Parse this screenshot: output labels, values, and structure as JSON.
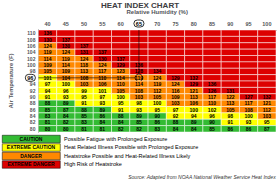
{
  "chart_data": {
    "type": "heatmap",
    "title": "HEAT INDEX CHART",
    "xlabel": "Relative Humidity (%)",
    "ylabel": "Air Temperature (F)",
    "categories": [
      40,
      45,
      50,
      55,
      60,
      65,
      70,
      75,
      80,
      85,
      90,
      95,
      100
    ],
    "y_categories": [
      110,
      108,
      106,
      104,
      102,
      100,
      98,
      96,
      94,
      92,
      90,
      88,
      86,
      84,
      82,
      80
    ],
    "values": [
      [
        136,
        null,
        null,
        null,
        null,
        null,
        null,
        null,
        null,
        null,
        null,
        null,
        null
      ],
      [
        130,
        137,
        null,
        null,
        null,
        null,
        null,
        null,
        null,
        null,
        null,
        null,
        null
      ],
      [
        124,
        130,
        137,
        null,
        null,
        null,
        null,
        null,
        null,
        null,
        null,
        null,
        null
      ],
      [
        119,
        124,
        131,
        137,
        null,
        null,
        null,
        null,
        null,
        null,
        null,
        null,
        null
      ],
      [
        114,
        119,
        124,
        130,
        137,
        null,
        null,
        null,
        null,
        null,
        null,
        null,
        null
      ],
      [
        109,
        114,
        118,
        124,
        129,
        136,
        null,
        null,
        null,
        null,
        null,
        null,
        null
      ],
      [
        105,
        109,
        113,
        117,
        123,
        128,
        134,
        null,
        null,
        null,
        null,
        null,
        null
      ],
      [
        101,
        104,
        108,
        110,
        114,
        119,
        124,
        129,
        132,
        null,
        null,
        null,
        null
      ],
      [
        97,
        100,
        103,
        106,
        110,
        114,
        119,
        124,
        129,
        136,
        null,
        null,
        null
      ],
      [
        94,
        96,
        99,
        101,
        105,
        108,
        112,
        116,
        121,
        126,
        131,
        null,
        null
      ],
      [
        91,
        93,
        95,
        97,
        100,
        103,
        105,
        109,
        113,
        117,
        122,
        127,
        132
      ],
      [
        88,
        89,
        91,
        93,
        95,
        98,
        100,
        103,
        106,
        110,
        113,
        117,
        121
      ],
      [
        85,
        87,
        88,
        89,
        91,
        93,
        95,
        97,
        100,
        102,
        105,
        108,
        112
      ],
      [
        83,
        84,
        85,
        86,
        88,
        89,
        90,
        92,
        94,
        96,
        98,
        100,
        103
      ],
      [
        81,
        82,
        83,
        84,
        84,
        85,
        86,
        88,
        89,
        90,
        91,
        93,
        95
      ],
      [
        80,
        80,
        81,
        81,
        82,
        82,
        83,
        84,
        84,
        85,
        86,
        86,
        87
      ]
    ],
    "data_labels": true,
    "grid": false,
    "color_scale": [
      {
        "label": "CAUTION",
        "desc": "Possible Fatigue with Prolonged Exposure",
        "color": "#33bb33",
        "max": 91
      },
      {
        "label": "EXTREME CAUTION",
        "desc": "Heat Related Illness Possible with Prolonged Exposure",
        "color": "#ffff00",
        "min": 91,
        "max": 103
      },
      {
        "label": "DANGER",
        "desc": "Heatstroke Possible and Heat-Related Illness Likely",
        "color": "#ff8800",
        "min": 103,
        "max": 125
      },
      {
        "label": "EXTREME DANGER",
        "desc": "High Risk of Heatstroke",
        "color": "#dd0000",
        "min": 125,
        "includes_null": true
      }
    ],
    "highlight": {
      "x": 65,
      "y": 96
    },
    "source": "Source: Adapted from NOAA National Weather Service Heat Index"
  }
}
